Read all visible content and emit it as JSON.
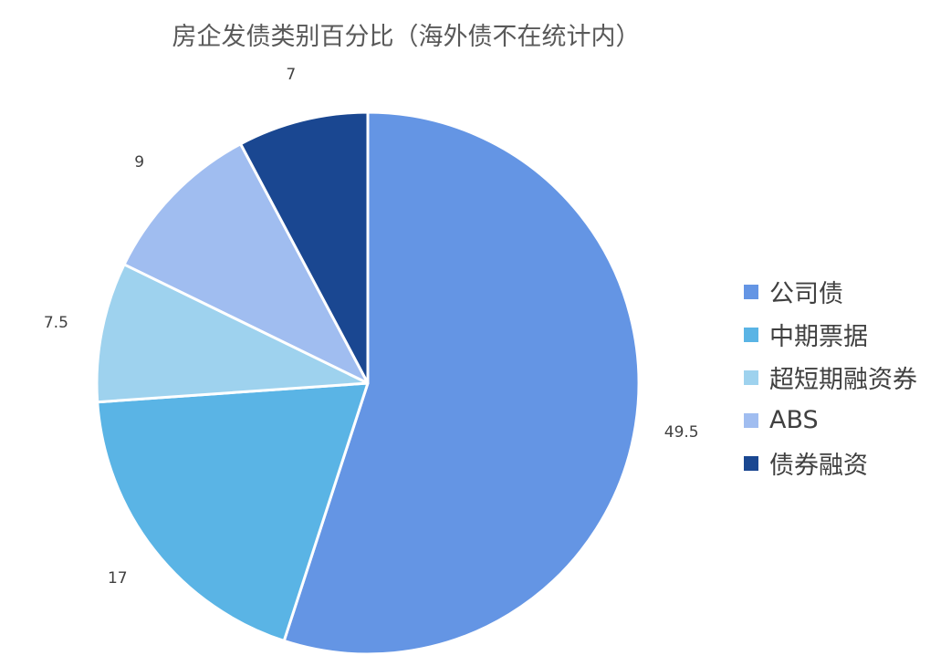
{
  "chart_data": {
    "type": "pie",
    "title": "房企发债类别百分比（海外债不在统计内）",
    "categories": [
      "公司债",
      "中期票据",
      "超短期融资券",
      "ABS",
      "债券融资"
    ],
    "values": [
      49.5,
      17,
      7.5,
      9,
      7
    ],
    "colors": [
      "#6495e4",
      "#5ab4e5",
      "#9ed2ee",
      "#a0bdf0",
      "#1a4791"
    ],
    "start_angle": 0,
    "direction": "clockwise",
    "legend": "right"
  }
}
